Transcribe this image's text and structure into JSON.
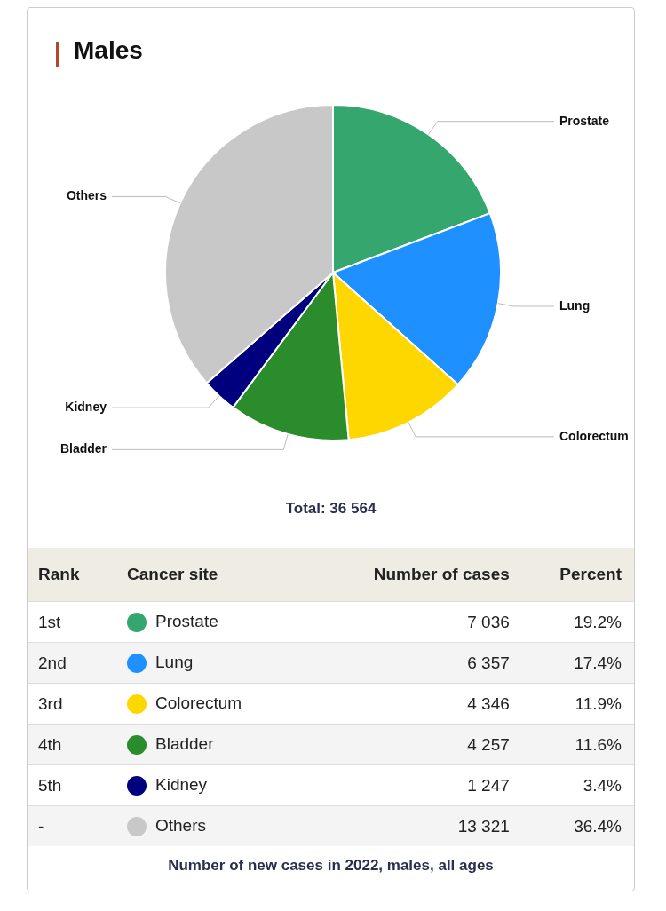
{
  "chart_data": {
    "type": "pie",
    "title": "Males",
    "categories": [
      "Prostate",
      "Lung",
      "Colorectum",
      "Bladder",
      "Kidney",
      "Others"
    ],
    "values": [
      7036,
      6357,
      4346,
      4257,
      1247,
      13321
    ],
    "value_labels": [
      "7 036",
      "6 357",
      "4 346",
      "4 257",
      "1 247",
      "13 321"
    ],
    "colors": [
      "#35a76e",
      "#1e90ff",
      "#ffd700",
      "#2a8c2a",
      "#00007f",
      "#c8c8c8"
    ],
    "legend": "bottom",
    "annotations": [
      "Total: 36 564",
      "Rank",
      "Cancer site",
      "Number of cases",
      "Percent",
      "1st",
      "2nd",
      "3rd",
      "4th",
      "5th",
      "-",
      "19.2%",
      "17.4%",
      "11.9%",
      "11.6%",
      "3.4%",
      "36.4%",
      "Number of new cases in 2022, males, all ages"
    ]
  }
}
